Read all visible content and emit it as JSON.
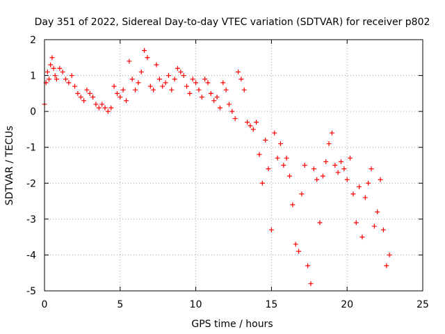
{
  "chart_data": {
    "type": "scatter",
    "title": "Day 351 of 2022, Sidereal Day-to-day VTEC variation (SDTVAR) for receiver p802",
    "xlabel": "GPS time / hours",
    "ylabel": "SDTVAR / TECUs",
    "xlim": [
      0,
      25
    ],
    "ylim": [
      -5,
      2
    ],
    "xticks": [
      0,
      5,
      10,
      15,
      20,
      25
    ],
    "yticks": [
      -5,
      -4,
      -3,
      -2,
      -1,
      0,
      1,
      2
    ],
    "xtick_labels": [
      "0",
      "5",
      "10",
      "15",
      "20",
      "25"
    ],
    "ytick_labels": [
      "-5",
      "-4",
      "-3",
      "-2",
      "-1",
      "0",
      "1",
      "2"
    ],
    "grid": true,
    "marker": "+",
    "series": [
      {
        "name": "SDTVAR",
        "color": "#ff0000",
        "x": [
          0.0,
          0.1,
          0.2,
          0.3,
          0.4,
          0.5,
          0.6,
          0.7,
          0.8,
          1.0,
          1.2,
          1.4,
          1.6,
          1.8,
          2.0,
          2.2,
          2.4,
          2.6,
          2.8,
          3.0,
          3.2,
          3.4,
          3.6,
          3.8,
          4.0,
          4.2,
          4.4,
          4.6,
          4.8,
          5.0,
          5.2,
          5.4,
          5.6,
          5.8,
          6.0,
          6.2,
          6.4,
          6.6,
          6.8,
          7.0,
          7.2,
          7.4,
          7.6,
          7.8,
          8.0,
          8.2,
          8.4,
          8.6,
          8.8,
          9.0,
          9.2,
          9.4,
          9.6,
          9.8,
          10.0,
          10.2,
          10.4,
          10.6,
          10.8,
          11.0,
          11.2,
          11.4,
          11.6,
          11.8,
          12.0,
          12.2,
          12.4,
          12.6,
          12.8,
          13.0,
          13.2,
          13.4,
          13.6,
          13.8,
          14.0,
          14.2,
          14.4,
          14.6,
          14.8,
          15.0,
          15.2,
          15.4,
          15.6,
          15.8,
          16.0,
          16.2,
          16.4,
          16.6,
          16.8,
          17.0,
          17.2,
          17.4,
          17.6,
          17.8,
          18.0,
          18.2,
          18.4,
          18.6,
          18.8,
          19.0,
          19.2,
          19.4,
          19.6,
          19.8,
          20.0,
          20.2,
          20.4,
          20.6,
          20.8,
          21.0,
          21.2,
          21.4,
          21.6,
          21.8,
          22.0,
          22.2,
          22.4,
          22.6,
          22.8
        ],
        "y": [
          0.2,
          0.8,
          1.1,
          0.9,
          1.3,
          1.5,
          1.2,
          1.0,
          0.9,
          1.2,
          1.1,
          0.9,
          0.8,
          1.0,
          0.7,
          0.5,
          0.4,
          0.3,
          0.6,
          0.5,
          0.4,
          0.2,
          0.1,
          0.2,
          0.1,
          0.0,
          0.1,
          0.7,
          0.5,
          0.4,
          0.6,
          0.3,
          1.4,
          0.9,
          0.6,
          0.8,
          1.1,
          1.7,
          1.5,
          0.7,
          0.6,
          1.3,
          0.9,
          0.7,
          0.8,
          1.0,
          0.6,
          0.9,
          1.2,
          1.1,
          1.0,
          0.7,
          0.5,
          0.9,
          0.8,
          0.6,
          0.4,
          0.9,
          0.8,
          0.5,
          0.3,
          0.4,
          0.1,
          0.8,
          0.6,
          0.2,
          0.0,
          -0.2,
          1.1,
          0.9,
          0.6,
          -0.3,
          -0.4,
          -0.5,
          -0.3,
          -1.2,
          -2.0,
          -0.8,
          -1.6,
          -3.3,
          -0.6,
          -1.3,
          -0.9,
          -1.5,
          -1.3,
          -1.8,
          -2.6,
          -3.7,
          -3.9,
          -2.3,
          -1.5,
          -4.3,
          -4.8,
          -1.6,
          -1.9,
          -3.1,
          -1.8,
          -1.4,
          -0.9,
          -0.6,
          -1.5,
          -1.7,
          -1.4,
          -1.6,
          -1.9,
          -1.3,
          -2.3,
          -3.1,
          -2.1,
          -3.5,
          -2.4,
          -2.0,
          -1.6,
          -3.2,
          -2.8,
          -1.9,
          -3.3,
          -4.3,
          -4.0
        ]
      }
    ]
  }
}
